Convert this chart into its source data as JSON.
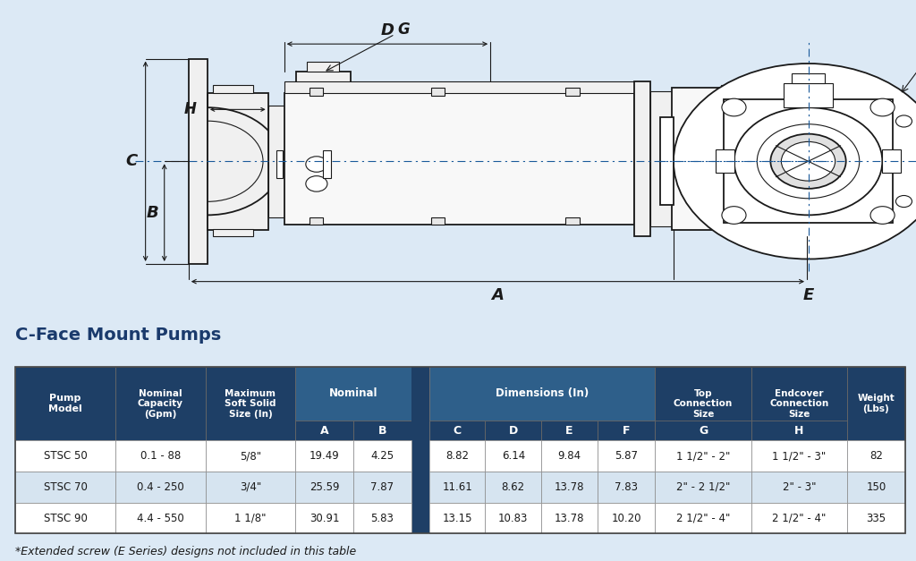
{
  "title": "C-Face Mount Pumps",
  "footnote": "*Extended screw (E Series) designs not included in this table",
  "bg_color": "#dce9f5",
  "diag_bg": "#ffffff",
  "header_dark": "#1e3f66",
  "header_mid": "#2e5f8a",
  "row_light": "#d6e4f0",
  "row_white": "#ffffff",
  "dark_blue_cell": "#1e3f66",
  "line_color": "#1a1a1a",
  "dash_color": "#1a5a9a",
  "data_rows": [
    [
      "STSC 50",
      "0.1 - 88",
      "5/8\"",
      "19.49",
      "4.25",
      "",
      "8.82",
      "6.14",
      "9.84",
      "5.87",
      "1 1/2\" - 2\"",
      "1 1/2\" - 3\"",
      "82"
    ],
    [
      "STSC 70",
      "0.4 - 250",
      "3/4\"",
      "25.59",
      "7.87",
      "",
      "11.61",
      "8.62",
      "13.78",
      "7.83",
      "2\" - 2 1/2\"",
      "2\" - 3\"",
      "150"
    ],
    [
      "STSC 90",
      "4.4 - 550",
      "1 1/8\"",
      "30.91",
      "5.83",
      "",
      "13.15",
      "10.83",
      "13.78",
      "10.20",
      "2 1/2\" - 4\"",
      "2 1/2\" - 4\"",
      "335"
    ]
  ]
}
